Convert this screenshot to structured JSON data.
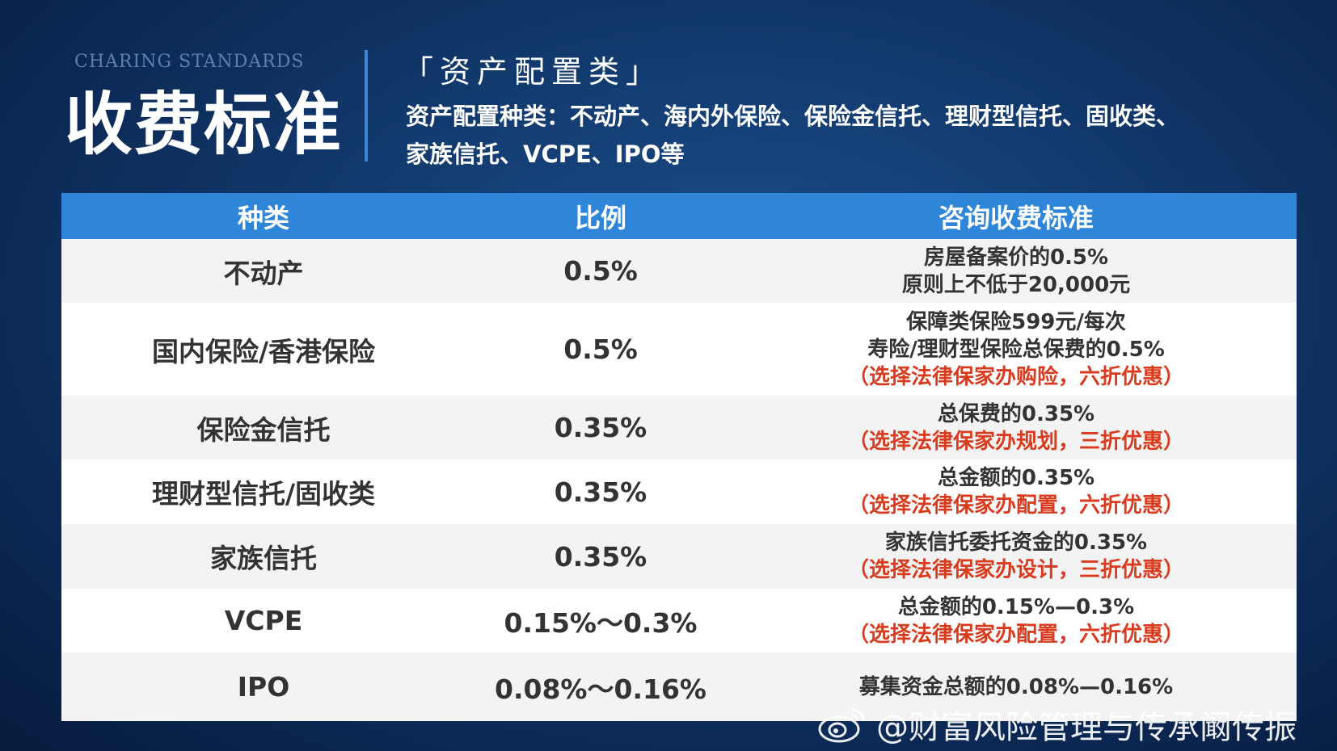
{
  "header": {
    "subtitle_en": "CHARING STANDARDS",
    "title": "收费标准",
    "section_tag": "「资产配置类」",
    "description_line1": "资产配置种类：不动产、海内外保险、保险金信托、理财型信托、固收类、",
    "description_line2": "家族信托、VCPE、IPO等"
  },
  "table": {
    "columns": [
      "种类",
      "比例",
      "咨询收费标准"
    ],
    "rows": [
      {
        "name": "不动产",
        "ratio": "0.5%",
        "fee": [
          "房屋备案价的0.5%",
          "原则上不低于20,000元"
        ],
        "fee_note": ""
      },
      {
        "name": "国内保险/香港保险",
        "ratio": "0.5%",
        "fee": [
          "保障类保险599元/每次",
          "寿险/理财型保险总保费的0.5%"
        ],
        "fee_note": "（选择法律保家办购险，六折优惠）"
      },
      {
        "name": "保险金信托",
        "ratio": "0.35%",
        "fee": [
          "总保费的0.35%"
        ],
        "fee_note": "（选择法律保家办规划，三折优惠）"
      },
      {
        "name": "理财型信托/固收类",
        "ratio": "0.35%",
        "fee": [
          "总金额的0.35%"
        ],
        "fee_note": "（选择法律保家办配置，六折优惠）"
      },
      {
        "name": "家族信托",
        "ratio": "0.35%",
        "fee": [
          "家族信托委托资金的0.35%"
        ],
        "fee_note": "（选择法律保家办设计，三折优惠）"
      },
      {
        "name": "VCPE",
        "ratio": "0.15%～0.3%",
        "fee": [
          "总金额的0.15%—0.3%"
        ],
        "fee_note": "（选择法律保家办配置，六折优惠）"
      },
      {
        "name": "IPO",
        "ratio": "0.08%～0.16%",
        "fee": [
          "募集资金总额的0.08%—0.16%"
        ],
        "fee_note": ""
      }
    ]
  },
  "watermark": {
    "text": "@财富风险管理与传承阚传振",
    "icon": "weibo-icon"
  },
  "colors": {
    "header_bar": "#2f86d9",
    "note_red": "#d83b1e",
    "divider": "#3f86d6"
  }
}
